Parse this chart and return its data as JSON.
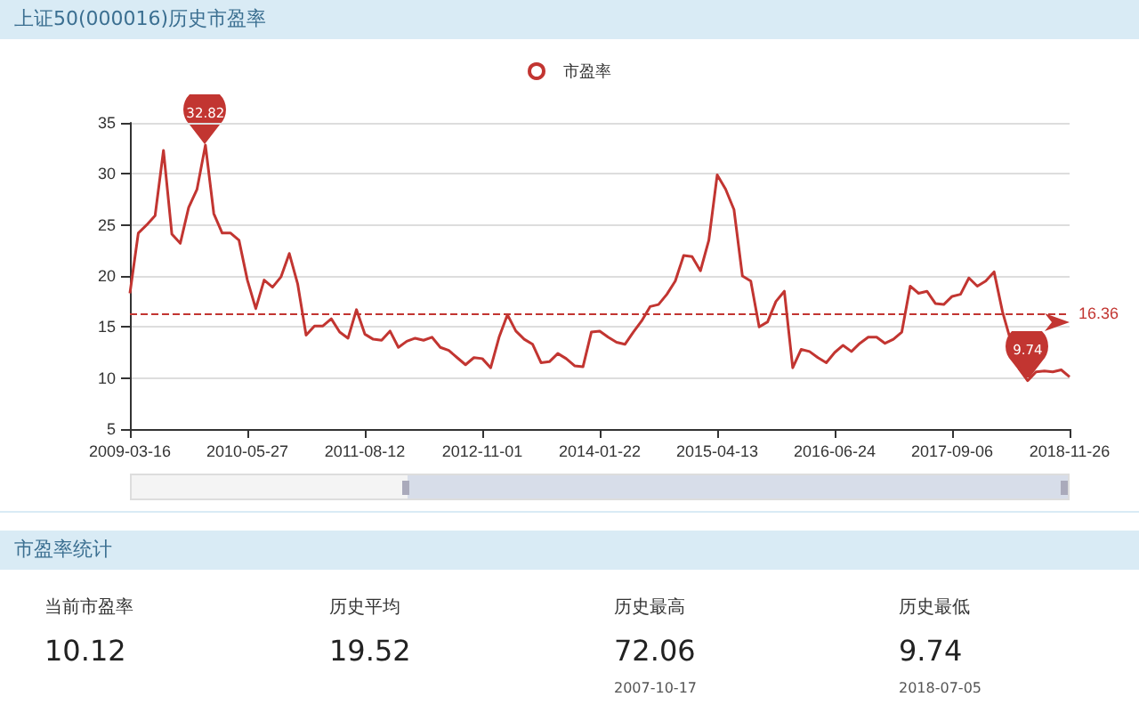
{
  "chart_data": [
    {
      "type": "line",
      "title": "上证50(000016)历史市盈率",
      "categories": [
        "2009-03-16",
        null,
        null,
        null,
        null,
        null,
        null,
        null,
        null,
        null,
        null,
        null,
        null,
        null,
        "2010-05-27",
        null,
        null,
        null,
        null,
        null,
        null,
        null,
        null,
        null,
        null,
        null,
        null,
        null,
        "2011-08-12",
        null,
        null,
        null,
        null,
        null,
        null,
        null,
        null,
        null,
        null,
        null,
        null,
        null,
        "2012-11-01",
        null,
        null,
        null,
        null,
        null,
        null,
        null,
        null,
        null,
        null,
        null,
        null,
        null,
        "2014-01-22",
        null,
        null,
        null,
        null,
        null,
        null,
        null,
        null,
        null,
        null,
        null,
        null,
        null,
        "2015-04-13",
        null,
        null,
        null,
        null,
        null,
        null,
        null,
        null,
        null,
        null,
        null,
        null,
        null,
        "2016-06-24",
        null,
        null,
        null,
        null,
        null,
        null,
        null,
        null,
        null,
        null,
        null,
        null,
        null,
        "2017-09-06",
        null,
        null,
        null,
        null,
        null,
        null,
        null,
        null,
        null,
        null,
        null,
        null,
        null,
        "2018-11-26"
      ],
      "series": [
        {
          "name": "市盈率",
          "color": "#c23531",
          "values": [
            18.3,
            24.2,
            25.0,
            25.9,
            32.3,
            24.1,
            23.2,
            26.7,
            28.5,
            32.82,
            26.1,
            24.2,
            24.2,
            23.5,
            19.6,
            16.8,
            19.6,
            18.9,
            19.9,
            22.2,
            19.2,
            14.2,
            15.1,
            15.1,
            15.8,
            14.5,
            13.9,
            16.7,
            14.3,
            13.8,
            13.7,
            14.6,
            13.0,
            13.6,
            13.9,
            13.7,
            14.0,
            13.0,
            12.7,
            12.0,
            11.3,
            12.0,
            11.9,
            11.0,
            14.0,
            16.2,
            14.6,
            13.8,
            13.3,
            11.5,
            11.6,
            12.4,
            11.9,
            11.2,
            11.1,
            14.5,
            14.6,
            14.0,
            13.5,
            13.3,
            14.5,
            15.6,
            17.0,
            17.2,
            18.2,
            19.5,
            22.0,
            21.9,
            20.5,
            23.5,
            29.9,
            28.5,
            26.5,
            20.0,
            19.5,
            15.0,
            15.5,
            17.5,
            18.5,
            11.0,
            12.8,
            12.6,
            12.0,
            11.5,
            12.5,
            13.2,
            12.6,
            13.4,
            14.0,
            14.0,
            13.4,
            13.8,
            14.5,
            19.0,
            18.3,
            18.5,
            17.3,
            17.2,
            18.0,
            18.2,
            19.8,
            19.0,
            19.5,
            20.4,
            16.5,
            13.6,
            10.9,
            9.74,
            10.6,
            10.7,
            10.6,
            10.8,
            10.12
          ]
        }
      ],
      "ylim": [
        5,
        35
      ],
      "yticks": [
        5,
        10,
        15,
        20,
        25,
        30,
        35
      ],
      "grid": "y",
      "legend": "top",
      "marker": "none",
      "ref_lines": [
        {
          "axis": "y",
          "value": 16.36,
          "label": "16.36",
          "color": "#c23531",
          "line_style": "dashed"
        }
      ],
      "annotations": [
        {
          "text": "32.82",
          "y": 32.82
        },
        {
          "text": "9.74",
          "y": 9.74
        }
      ]
    },
    {
      "type": "other",
      "title": "市盈率统计",
      "annotations": [
        "当前市盈率",
        "10.12",
        "历史平均",
        "19.52",
        "历史最高",
        "72.06",
        "2007-10-17",
        "历史最低",
        "9.74",
        "2018-07-05"
      ]
    }
  ]
}
